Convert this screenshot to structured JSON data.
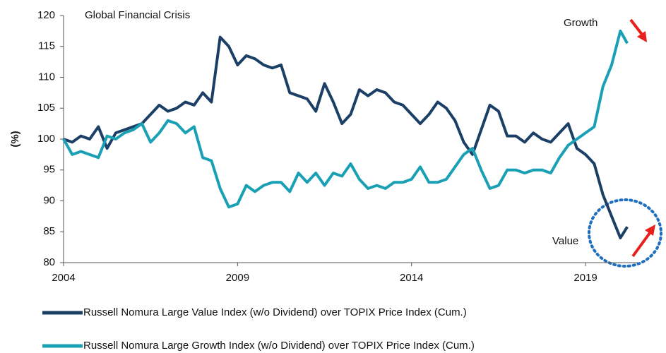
{
  "chart_data": {
    "type": "line",
    "y_label": "(%)",
    "annotations": [
      "Global Financial Crisis",
      "Growth",
      "Value"
    ],
    "x": [
      2004,
      2004.25,
      2004.5,
      2004.75,
      2005,
      2005.25,
      2005.5,
      2005.75,
      2006,
      2006.25,
      2006.5,
      2006.75,
      2007,
      2007.25,
      2007.5,
      2007.75,
      2008,
      2008.25,
      2008.5,
      2008.75,
      2009,
      2009.25,
      2009.5,
      2009.75,
      2010,
      2010.25,
      2010.5,
      2010.75,
      2011,
      2011.25,
      2011.5,
      2011.75,
      2012,
      2012.25,
      2012.5,
      2012.75,
      2013,
      2013.25,
      2013.5,
      2013.75,
      2014,
      2014.25,
      2014.5,
      2014.75,
      2015,
      2015.25,
      2015.5,
      2015.75,
      2016,
      2016.25,
      2016.5,
      2016.75,
      2017,
      2017.25,
      2017.5,
      2017.75,
      2018,
      2018.25,
      2018.5,
      2018.75,
      2019,
      2019.25,
      2019.5,
      2019.75,
      2020,
      2020.2
    ],
    "series": [
      {
        "name": "Russell Nomura Large Value Index (w/o Dividend) over TOPIX Price Index (Cum.)",
        "color": "#1c3f66",
        "values": [
          100,
          99.5,
          100.5,
          100,
          102,
          98.5,
          101,
          101.5,
          102,
          102.5,
          104,
          105.5,
          104.5,
          105,
          106,
          105.5,
          107.5,
          106,
          116.5,
          115,
          112,
          113.5,
          113,
          112,
          111.5,
          112,
          107.5,
          107,
          106.5,
          104.5,
          109,
          106,
          102.5,
          104,
          108,
          107,
          108,
          107.5,
          106,
          105.5,
          104,
          102.5,
          104,
          106,
          105,
          103,
          99.5,
          97.5,
          101.5,
          105.5,
          104.5,
          100.5,
          100.5,
          99.5,
          101,
          100,
          99.5,
          101,
          102.5,
          98.5,
          97.5,
          96,
          91,
          87.5,
          84,
          85.8
        ]
      },
      {
        "name": "Russell Nomura Large Growth Index (w/o Dividend) over TOPIX Price Index (Cum.)",
        "color": "#1aa0b4",
        "values": [
          100,
          97.5,
          98,
          97.5,
          97,
          100.5,
          100,
          101,
          101.5,
          102.5,
          99.5,
          101,
          103,
          102.5,
          101,
          102,
          97,
          96.5,
          92,
          89,
          89.5,
          92.5,
          91.5,
          92.5,
          93,
          93,
          91.5,
          94.5,
          93,
          94.5,
          92.5,
          94.5,
          94,
          96,
          93.5,
          92,
          92.5,
          92,
          93,
          93,
          93.5,
          95.5,
          93,
          93,
          93.5,
          95.5,
          97.5,
          98.5,
          95,
          92,
          92.5,
          95,
          95,
          94.5,
          95,
          95,
          94.5,
          97,
          99,
          100,
          101,
          102,
          108.5,
          112,
          117.5,
          115.5
        ]
      }
    ],
    "xlim": [
      2004,
      2020.5
    ],
    "xticks": [
      2004,
      2009,
      2014,
      2019
    ],
    "ylim": [
      80,
      120
    ],
    "yticks": [
      80,
      85,
      90,
      95,
      100,
      105,
      110,
      115,
      120
    ]
  }
}
